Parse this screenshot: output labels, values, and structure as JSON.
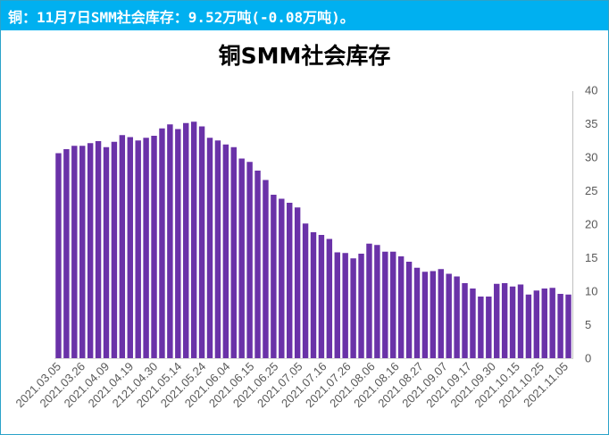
{
  "header": {
    "text": "铜：11月7日SMM社会库存：9.52万吨(-0.08万吨)。"
  },
  "colors": {
    "header_bg": "#00b0f0",
    "bar": "#6a32a8",
    "axis": "#bfbfbf"
  },
  "chart_data": {
    "type": "bar",
    "title": "铜SMM社会库存",
    "xlabel": "",
    "ylabel": "",
    "ylim": [
      0,
      40
    ],
    "y_ticks": [
      0,
      5,
      10,
      15,
      20,
      25,
      30,
      35,
      40
    ],
    "y_axis_side": "right",
    "grid": false,
    "x_tick_labels": [
      "2021.03.05",
      "2021.03.26",
      "2021.04.09",
      "2021.04.19",
      "2121.04.30",
      "2021.05.14",
      "2021.05.24",
      "2021.06.04",
      "2021.06.15",
      "2021.06.25",
      "2021.07.05",
      "2021.07.16",
      "2021.07.26",
      "2021.08.06",
      "2021.08.16",
      "2021.08.27",
      "2021.09.07",
      "2021.09.17",
      "2021.09.30",
      "2021.10.15",
      "2021.10.25",
      "2021.11.05"
    ],
    "values": [
      30.6,
      31.2,
      31.7,
      31.7,
      32.1,
      32.4,
      31.5,
      32.3,
      33.3,
      33.0,
      32.5,
      32.9,
      33.2,
      34.3,
      34.9,
      34.2,
      35.1,
      35.3,
      34.6,
      32.9,
      32.5,
      31.9,
      31.5,
      29.8,
      29.3,
      28.0,
      26.6,
      24.4,
      23.8,
      23.2,
      22.5,
      20.1,
      18.8,
      18.4,
      17.8,
      15.8,
      15.7,
      14.9,
      15.6,
      17.1,
      16.9,
      15.9,
      15.9,
      15.2,
      14.4,
      13.5,
      12.9,
      13.0,
      13.3,
      12.6,
      12.2,
      11.2,
      10.4,
      9.2,
      9.2,
      11.1,
      11.2,
      10.7,
      11.0,
      9.5,
      10.1,
      10.4,
      10.5,
      9.6,
      9.5
    ]
  }
}
